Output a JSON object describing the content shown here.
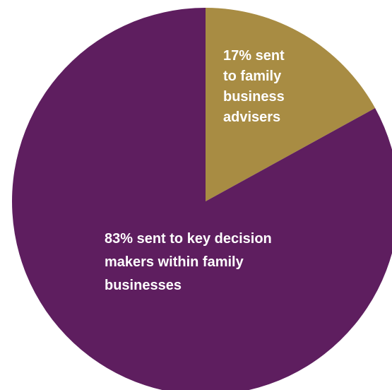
{
  "chart_data": {
    "type": "pie",
    "title": "",
    "start_angle_deg": 0,
    "direction": "clockwise",
    "slices": [
      {
        "label_lines": [
          "17% sent",
          "to family",
          "business",
          "advisers"
        ],
        "value": 17,
        "color": "#a88c43"
      },
      {
        "label_lines": [
          "83% sent to key decision",
          "makers within family",
          "businesses"
        ],
        "value": 83,
        "color": "#5e1e5f"
      }
    ]
  }
}
